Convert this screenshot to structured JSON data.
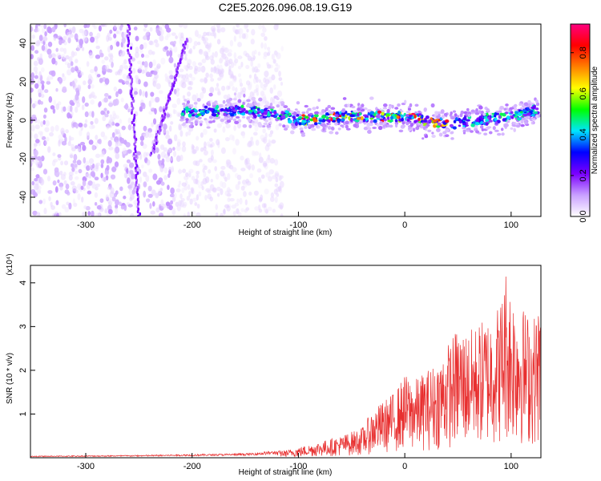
{
  "title": "C2E5.2026.096.08.19.G19",
  "chart_data": [
    {
      "type": "heatmap",
      "xlabel": "Height of straight line (km)",
      "ylabel": "Frequency (Hz)",
      "xlim": [
        -352,
        128
      ],
      "ylim": [
        -50,
        50
      ],
      "xticks": [
        -300,
        -200,
        -100,
        0,
        100
      ],
      "yticks": [
        -40,
        -20,
        0,
        20,
        40
      ],
      "colorbar": {
        "label": "Normalized spectral amplitude",
        "range": [
          0.0,
          0.94
        ],
        "ticks": [
          0.0,
          0.2,
          0.4,
          0.6,
          0.8
        ],
        "colors": [
          "#ffffff",
          "#c9a0ff",
          "#7b00ff",
          "#0000ff",
          "#00e5ff",
          "#00ff00",
          "#ffff00",
          "#ff8000",
          "#ff0000",
          "#ff0080"
        ]
      },
      "features": {
        "noise_region_x": [
          -352,
          -115
        ],
        "signal_track": [
          [
            -210,
            4
          ],
          [
            -150,
            5
          ],
          [
            -115,
            3
          ],
          [
            -100,
            0
          ],
          [
            -50,
            2
          ],
          [
            0,
            2
          ],
          [
            40,
            -2
          ],
          [
            100,
            2
          ],
          [
            128,
            6
          ]
        ],
        "streak_lines": [
          [
            [
              -260,
              50
            ],
            [
              -250,
              -50
            ]
          ],
          [
            [
              -205,
              42
            ],
            [
              -238,
              -18
            ]
          ]
        ]
      }
    },
    {
      "type": "line",
      "xlabel": "Height of straight line (km)",
      "ylabel": "SNR (10 * v/v)",
      "ymultiplier": "(x10⁴)",
      "xlim": [
        -352,
        128
      ],
      "ylim": [
        0,
        4.4
      ],
      "xticks": [
        -300,
        -200,
        -100,
        0,
        100
      ],
      "yticks": [
        1,
        2,
        3,
        4
      ],
      "color": "#e83030",
      "envelope": {
        "x": [
          -352,
          -250,
          -200,
          -150,
          -110,
          -90,
          -60,
          -40,
          -30,
          -20,
          -10,
          0,
          10,
          20,
          30,
          40,
          50,
          60,
          70,
          80,
          90,
          95,
          100,
          110,
          120,
          128
        ],
        "y": [
          0.04,
          0.06,
          0.08,
          0.1,
          0.18,
          0.3,
          0.5,
          0.7,
          1.1,
          1.3,
          1.5,
          1.9,
          1.8,
          2.0,
          2.2,
          2.6,
          3.0,
          2.9,
          3.1,
          3.3,
          3.6,
          4.4,
          3.9,
          3.5,
          3.2,
          3.6
        ]
      }
    }
  ]
}
